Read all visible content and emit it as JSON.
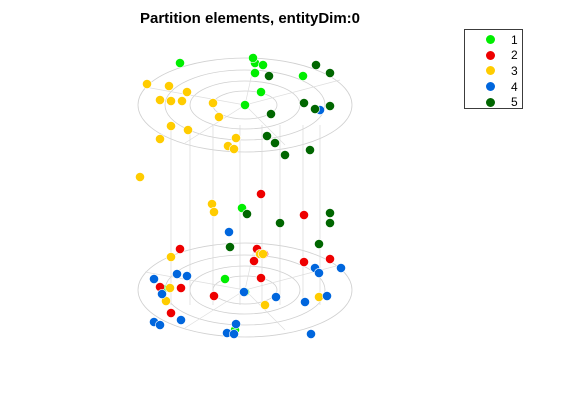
{
  "chart_data": {
    "type": "scatter",
    "title": "Partition elements, entityDim:0",
    "legend": {
      "placement": "top-right",
      "entries": [
        {
          "label": "1",
          "color": "#00ee00"
        },
        {
          "label": "2",
          "color": "#ee0000"
        },
        {
          "label": "3",
          "color": "#ffcc00"
        },
        {
          "label": "4",
          "color": "#0066dd"
        },
        {
          "label": "5",
          "color": "#006600"
        }
      ]
    },
    "grid": "off",
    "axes": "hidden",
    "series": [
      {
        "name": "1",
        "points": [
          [
            180,
            63
          ],
          [
            255,
            63
          ],
          [
            263,
            65
          ],
          [
            245,
            105
          ],
          [
            261,
            92
          ],
          [
            303,
            76
          ],
          [
            255,
            73
          ],
          [
            253,
            58
          ],
          [
            225,
            279
          ],
          [
            245,
            292
          ],
          [
            235,
            330
          ],
          [
            163,
            289
          ],
          [
            242,
            208
          ]
        ]
      },
      {
        "name": "2",
        "points": [
          [
            261,
            194
          ],
          [
            304,
            215
          ],
          [
            180,
            249
          ],
          [
            257,
            249
          ],
          [
            264,
            254
          ],
          [
            254,
            261
          ],
          [
            261,
            278
          ],
          [
            304,
            262
          ],
          [
            330,
            259
          ],
          [
            160,
            287
          ],
          [
            181,
            288
          ],
          [
            214,
            296
          ],
          [
            171,
            313
          ]
        ]
      },
      {
        "name": "3",
        "points": [
          [
            147,
            84
          ],
          [
            169,
            86
          ],
          [
            187,
            92
          ],
          [
            160,
            100
          ],
          [
            171,
            101
          ],
          [
            182,
            101
          ],
          [
            213,
            103
          ],
          [
            219,
            117
          ],
          [
            171,
            126
          ],
          [
            188,
            130
          ],
          [
            160,
            139
          ],
          [
            236,
            138
          ],
          [
            228,
            146
          ],
          [
            234,
            149
          ],
          [
            140,
            177
          ],
          [
            212,
            204
          ],
          [
            214,
            212
          ],
          [
            260,
            254
          ],
          [
            171,
            257
          ],
          [
            263,
            254
          ],
          [
            170,
            288
          ],
          [
            166,
            301
          ],
          [
            265,
            305
          ],
          [
            319,
            297
          ]
        ]
      },
      {
        "name": "4",
        "points": [
          [
            320,
            110
          ],
          [
            229,
            232
          ],
          [
            177,
            274
          ],
          [
            187,
            276
          ],
          [
            315,
            268
          ],
          [
            319,
            273
          ],
          [
            341,
            268
          ],
          [
            154,
            279
          ],
          [
            162,
            294
          ],
          [
            244,
            292
          ],
          [
            276,
            297
          ],
          [
            327,
            296
          ],
          [
            305,
            302
          ],
          [
            181,
            320
          ],
          [
            154,
            322
          ],
          [
            160,
            325
          ],
          [
            236,
            324
          ],
          [
            227,
            333
          ],
          [
            234,
            334
          ],
          [
            311,
            334
          ]
        ]
      },
      {
        "name": "5",
        "points": [
          [
            316,
            65
          ],
          [
            330,
            73
          ],
          [
            269,
            76
          ],
          [
            271,
            114
          ],
          [
            304,
            103
          ],
          [
            315,
            109
          ],
          [
            330,
            106
          ],
          [
            267,
            136
          ],
          [
            275,
            143
          ],
          [
            285,
            155
          ],
          [
            310,
            150
          ],
          [
            330,
            213
          ],
          [
            330,
            223
          ],
          [
            247,
            214
          ],
          [
            280,
            223
          ],
          [
            319,
            244
          ],
          [
            230,
            247
          ]
        ]
      }
    ]
  }
}
